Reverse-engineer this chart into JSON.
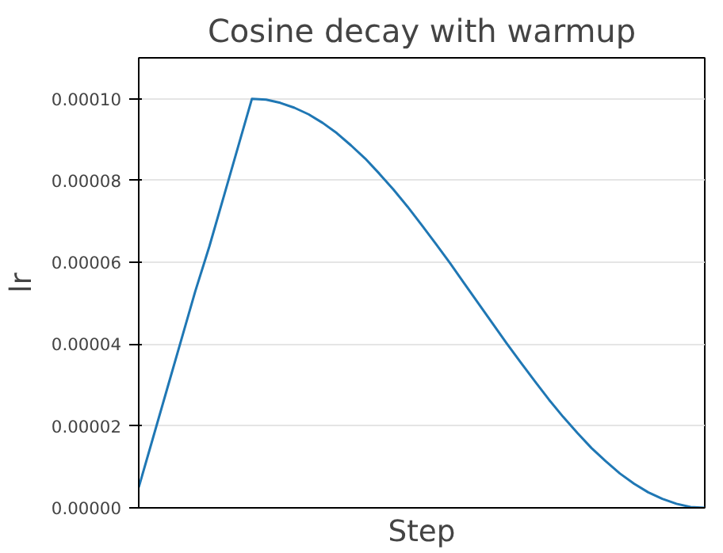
{
  "chart_data": {
    "type": "line",
    "title": "Cosine decay with warmup",
    "xlabel": "Step",
    "ylabel": "lr",
    "categories": [
      null,
      null,
      null,
      null,
      null,
      null,
      null,
      null,
      null,
      null,
      null,
      null,
      null,
      null,
      null,
      null,
      null,
      null,
      null,
      null,
      null,
      null,
      null,
      null,
      null,
      null,
      null,
      null,
      null,
      null,
      null,
      null,
      null,
      null,
      null,
      null,
      null,
      null,
      null,
      null,
      null
    ],
    "series": [
      {
        "color": "#1f77b4",
        "values": [
          5e-06,
          1.7e-05,
          2.9e-05,
          4.1e-05,
          5.3e-05,
          6.4e-05,
          7.6e-05,
          8.8e-05,
          0.0001,
          9.98e-05,
          9.9e-05,
          9.78e-05,
          9.62e-05,
          9.41e-05,
          9.16e-05,
          8.86e-05,
          8.54e-05,
          8.17e-05,
          7.78e-05,
          7.36e-05,
          6.91e-05,
          6.45e-05,
          5.98e-05,
          5.49e-05,
          5e-05,
          4.51e-05,
          4.02e-05,
          3.55e-05,
          3.09e-05,
          2.64e-05,
          2.22e-05,
          1.83e-05,
          1.46e-05,
          1.14e-05,
          8.4e-06,
          5.9e-06,
          3.8e-06,
          2.2e-06,
          1e-06,
          2e-07,
          0
        ]
      }
    ],
    "ylim": [
      0,
      0.00011
    ],
    "yticks": [
      {
        "value": 0,
        "label": "0.00000"
      },
      {
        "value": 2e-05,
        "label": "0.00002"
      },
      {
        "value": 4e-05,
        "label": "0.00004"
      },
      {
        "value": 6e-05,
        "label": "0.00006"
      },
      {
        "value": 8e-05,
        "label": "0.00008"
      },
      {
        "value": 0.0001,
        "label": "0.00010"
      }
    ],
    "grid": "y",
    "tick_labels": "y",
    "line_style": "solid"
  }
}
